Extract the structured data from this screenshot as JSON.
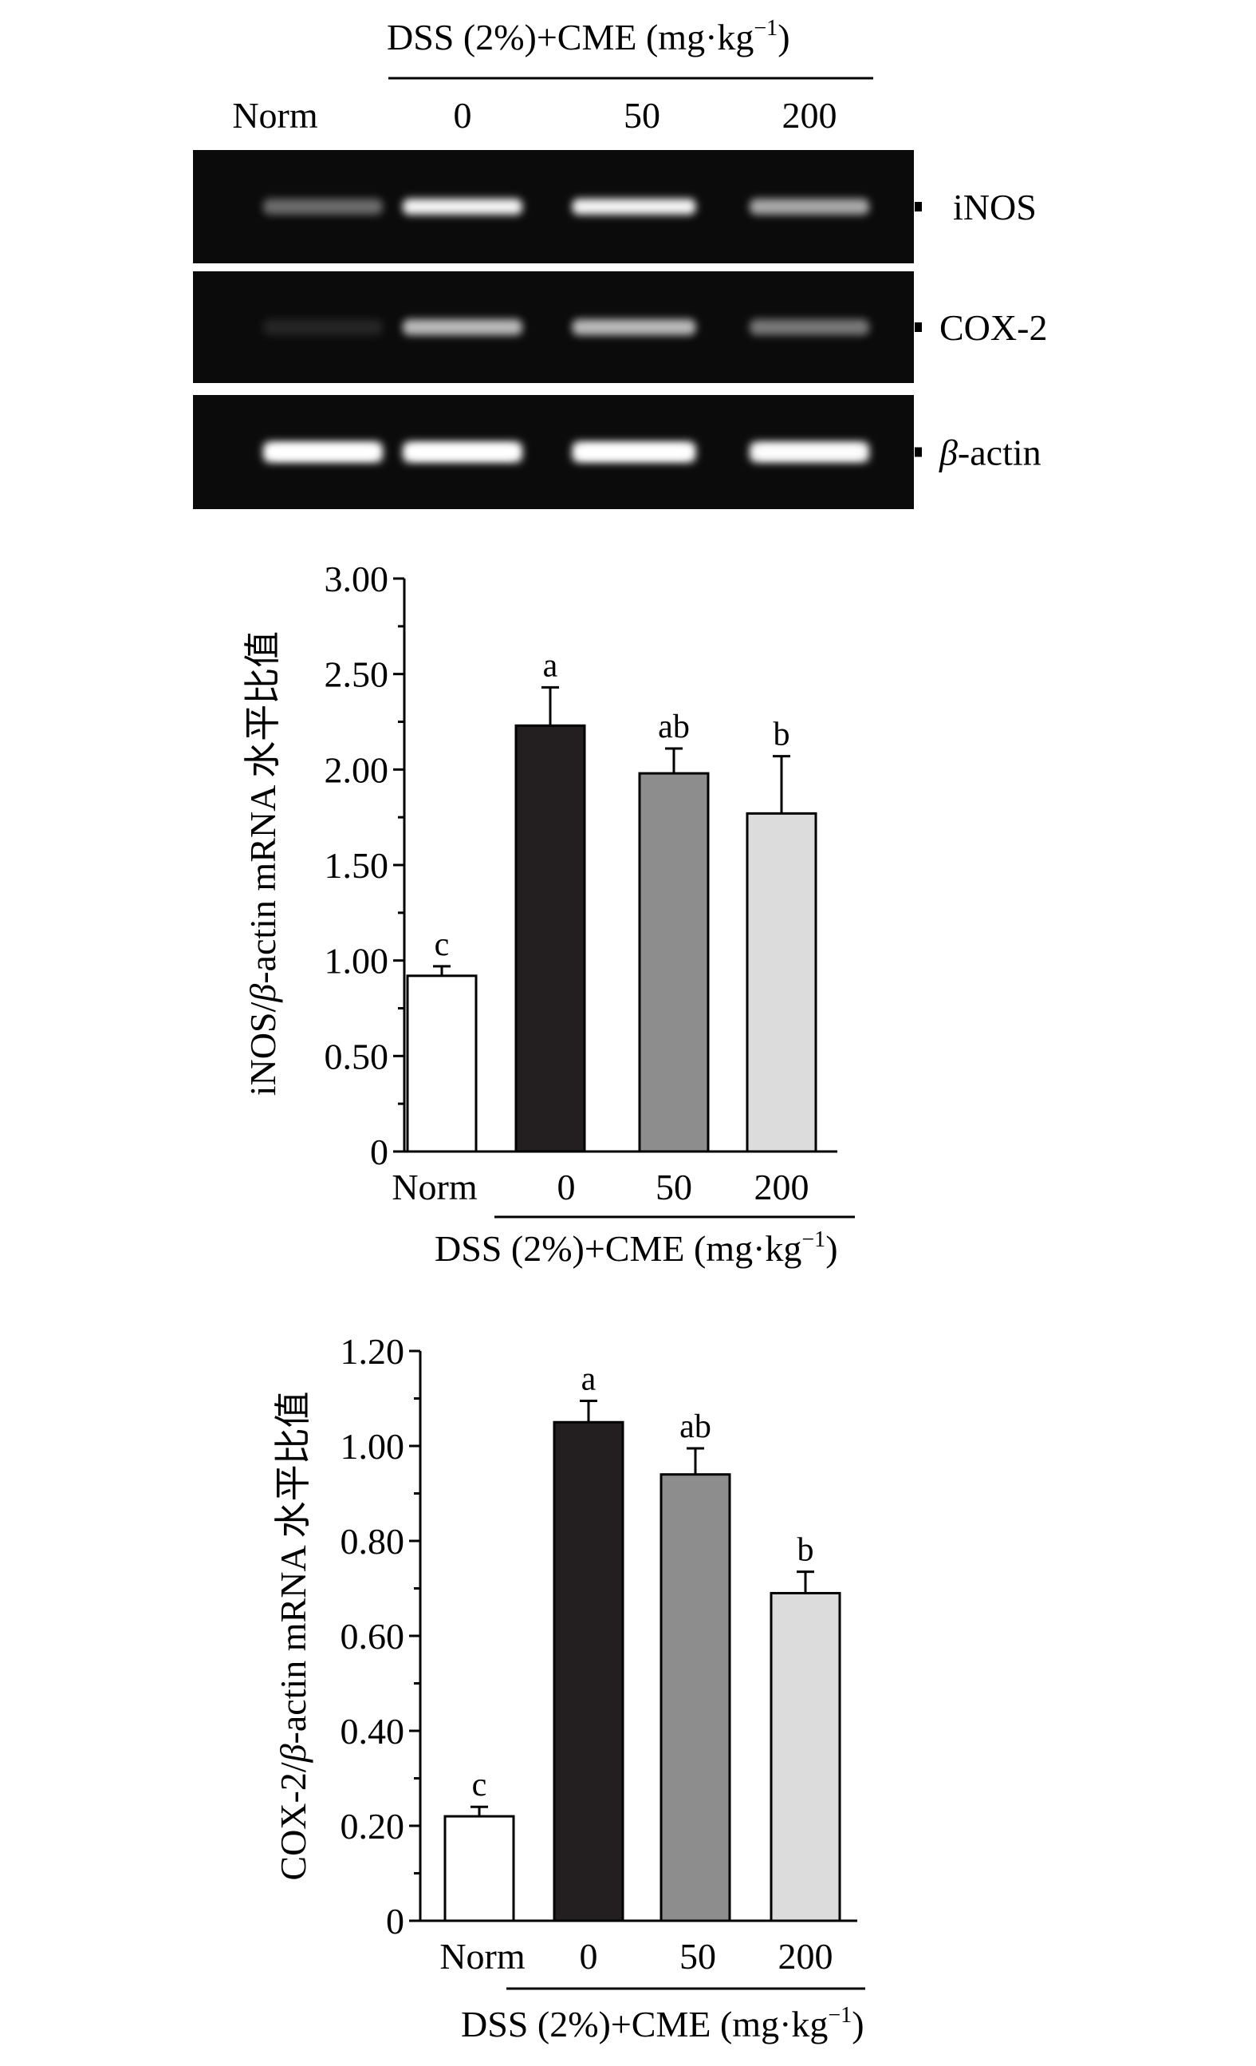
{
  "gel": {
    "header": {
      "group": "DSS (2%)+CME (mg·kg",
      "sup": "−1",
      "close": ")"
    },
    "lane_labels": [
      "Norm",
      "0",
      "50",
      "200"
    ],
    "bands": [
      {
        "label": "iNOS",
        "italic": false,
        "intensity": [
          0.45,
          0.95,
          0.95,
          0.65
        ]
      },
      {
        "label": "COX-2",
        "italic": false,
        "intensity": [
          0.12,
          0.7,
          0.7,
          0.5
        ]
      },
      {
        "label": "β",
        "suffix": "-actin",
        "italic": true,
        "intensity": [
          1.0,
          1.0,
          1.0,
          0.95
        ]
      }
    ]
  },
  "chart_data": [
    {
      "type": "bar",
      "categories": [
        "Norm",
        "0",
        "50",
        "200"
      ],
      "values": [
        0.92,
        2.23,
        1.98,
        1.77
      ],
      "errors": [
        0.05,
        0.2,
        0.13,
        0.3
      ],
      "significance": [
        "c",
        "a",
        "ab",
        "b"
      ],
      "bar_colors": [
        "#ffffff",
        "#231f20",
        "#8d8d8d",
        "#dcdcdc"
      ],
      "ylim": [
        0,
        3.0
      ],
      "yticks": [
        "0",
        "0.50",
        "1.00",
        "1.50",
        "2.00",
        "2.50",
        "3.00"
      ],
      "ytick_values": [
        0,
        0.5,
        1.0,
        1.5,
        2.0,
        2.5,
        3.0
      ],
      "ylabel": {
        "pre": "iNOS/",
        "beta": "β",
        "post": "-actin mRNA 水平比值"
      },
      "xlabel": {
        "main": "DSS (2%)+CME (mg·kg",
        "sup": "−1",
        "close": ")"
      }
    },
    {
      "type": "bar",
      "categories": [
        "Norm",
        "0",
        "50",
        "200"
      ],
      "values": [
        0.22,
        1.05,
        0.94,
        0.69
      ],
      "errors": [
        0.02,
        0.045,
        0.055,
        0.045
      ],
      "significance": [
        "c",
        "a",
        "ab",
        "b"
      ],
      "bar_colors": [
        "#ffffff",
        "#231f20",
        "#8d8d8d",
        "#dcdcdc"
      ],
      "ylim": [
        0,
        1.2
      ],
      "yticks": [
        "0",
        "0.20",
        "0.40",
        "0.60",
        "0.80",
        "1.00",
        "1.20"
      ],
      "ytick_values": [
        0,
        0.2,
        0.4,
        0.6,
        0.8,
        1.0,
        1.2
      ],
      "ylabel": {
        "pre": "COX-2/",
        "beta": "β",
        "post": "-actin mRNA 水平比值"
      },
      "xlabel": {
        "main": "DSS (2%)+CME (mg·kg",
        "sup": "−1",
        "close": ")"
      }
    }
  ]
}
